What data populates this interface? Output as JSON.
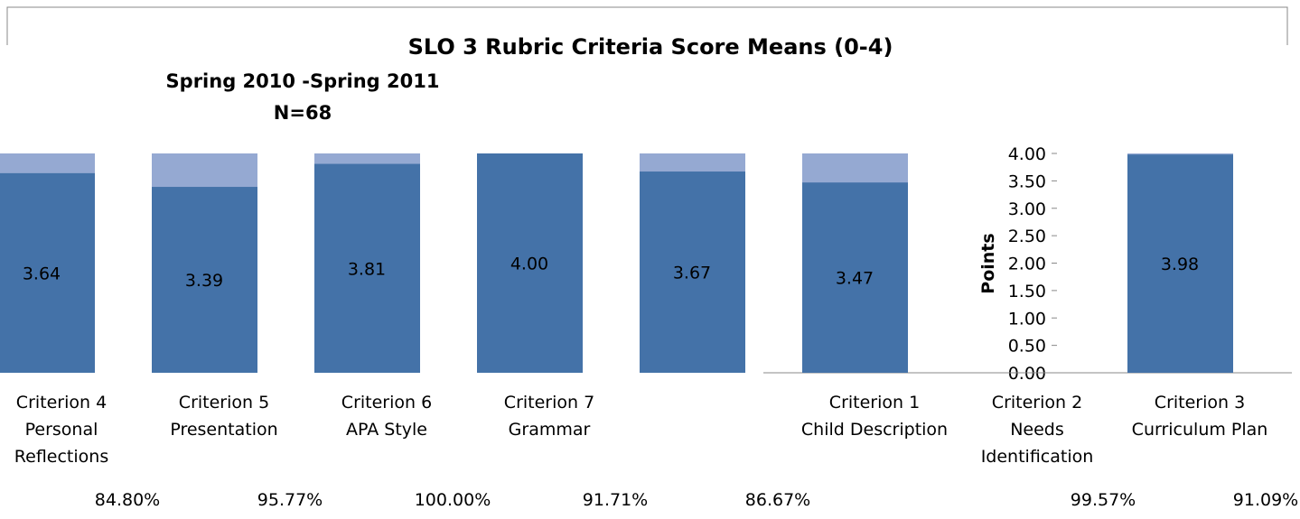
{
  "chart_data": {
    "type": "bar",
    "title": "SLO 3 Rubric Criteria Score Means (0-4)",
    "subtitle": "Spring 2010 -Spring 2011",
    "note": "N=68",
    "y_label": "Points",
    "categories": [
      [
        "Criterion 4",
        "Personal",
        "Reflections"
      ],
      [
        "Criterion 5",
        "Presentation"
      ],
      [
        "Criterion 6",
        "APA Style"
      ],
      [
        "Criterion 7",
        "Grammar"
      ],
      null,
      [
        "Criterion 1",
        "Child Description"
      ],
      [
        "Criterion 2",
        "Needs",
        "Identification"
      ],
      [
        "Criterion 3",
        "Curriculum Plan"
      ]
    ],
    "values": [
      3.64,
      3.39,
      3.81,
      4.0,
      3.67,
      3.47,
      null,
      3.98
    ],
    "value_labels": [
      "3.64",
      "3.39",
      "3.81",
      "4.00",
      "3.67",
      "3.47",
      null,
      "3.98"
    ],
    "percentages": [
      "84.80%",
      "95.77%",
      "100.00%",
      "91.71%",
      "86.67%",
      null,
      "99.57%",
      "91.09%"
    ],
    "color": "#4472a8",
    "ylim": [
      0,
      4
    ],
    "yticks": [
      {
        "value": 0,
        "label": "0.00"
      },
      {
        "value": 0.5,
        "label": "0.50"
      },
      {
        "value": 1,
        "label": "1.00"
      },
      {
        "value": 1.5,
        "label": "1.50"
      },
      {
        "value": 2,
        "label": "2.00"
      },
      {
        "value": 2.5,
        "label": "2.50"
      },
      {
        "value": 3,
        "label": "3.00"
      },
      {
        "value": 3.5,
        "label": "3.50"
      },
      {
        "value": 4,
        "label": "4.00"
      }
    ]
  }
}
